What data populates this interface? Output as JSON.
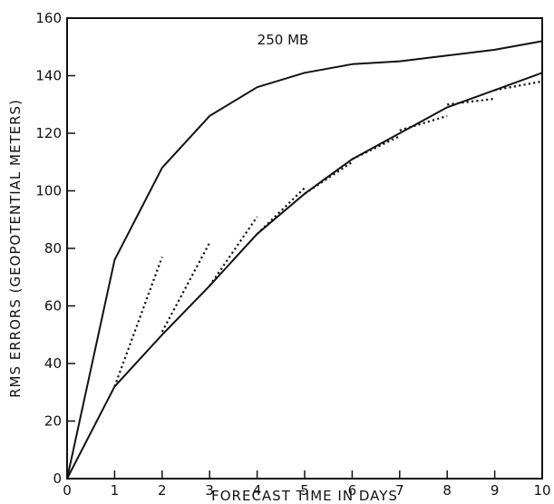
{
  "chart_data": {
    "type": "line",
    "title": "",
    "annotation": "250 MB",
    "xlabel": "FORECAST TIME IN DAYS",
    "ylabel": "RMS ERRORS (GEOPOTENTIAL METERS)",
    "xlim": [
      0,
      10
    ],
    "ylim": [
      0,
      160
    ],
    "xticks": [
      "0",
      "1",
      "2",
      "3",
      "4",
      "5",
      "6",
      "7",
      "8",
      "9",
      "10"
    ],
    "yticks": [
      "0",
      "20",
      "40",
      "60",
      "80",
      "100",
      "120",
      "140",
      "160"
    ],
    "grid": false,
    "series": [
      {
        "style": "solid",
        "x": [
          0,
          1,
          2,
          3,
          4,
          5,
          6,
          7,
          8,
          9,
          10
        ],
        "y": [
          0,
          76,
          108,
          126,
          136,
          141,
          144,
          145,
          147,
          149,
          152
        ]
      },
      {
        "style": "solid",
        "x": [
          0,
          1,
          2,
          3,
          4,
          5,
          6,
          7,
          8,
          9,
          10
        ],
        "y": [
          0,
          32,
          50,
          67,
          85,
          99,
          111,
          120,
          129,
          135,
          141
        ]
      },
      {
        "style": "dotted",
        "x": [
          1,
          2
        ],
        "y": [
          32,
          77
        ]
      },
      {
        "style": "dotted",
        "x": [
          2,
          3
        ],
        "y": [
          51,
          82
        ]
      },
      {
        "style": "dotted",
        "x": [
          3,
          4
        ],
        "y": [
          67,
          91
        ]
      },
      {
        "style": "dotted",
        "x": [
          4,
          5
        ],
        "y": [
          85,
          101
        ]
      },
      {
        "style": "dotted",
        "x": [
          5,
          6
        ],
        "y": [
          99,
          110
        ]
      },
      {
        "style": "dotted",
        "x": [
          6,
          7
        ],
        "y": [
          111,
          119
        ]
      },
      {
        "style": "dotted",
        "x": [
          7,
          8
        ],
        "y": [
          121,
          126
        ]
      },
      {
        "style": "dotted",
        "x": [
          8,
          9
        ],
        "y": [
          130,
          132
        ]
      },
      {
        "style": "dotted",
        "x": [
          9,
          10
        ],
        "y": [
          135,
          138
        ]
      }
    ]
  }
}
